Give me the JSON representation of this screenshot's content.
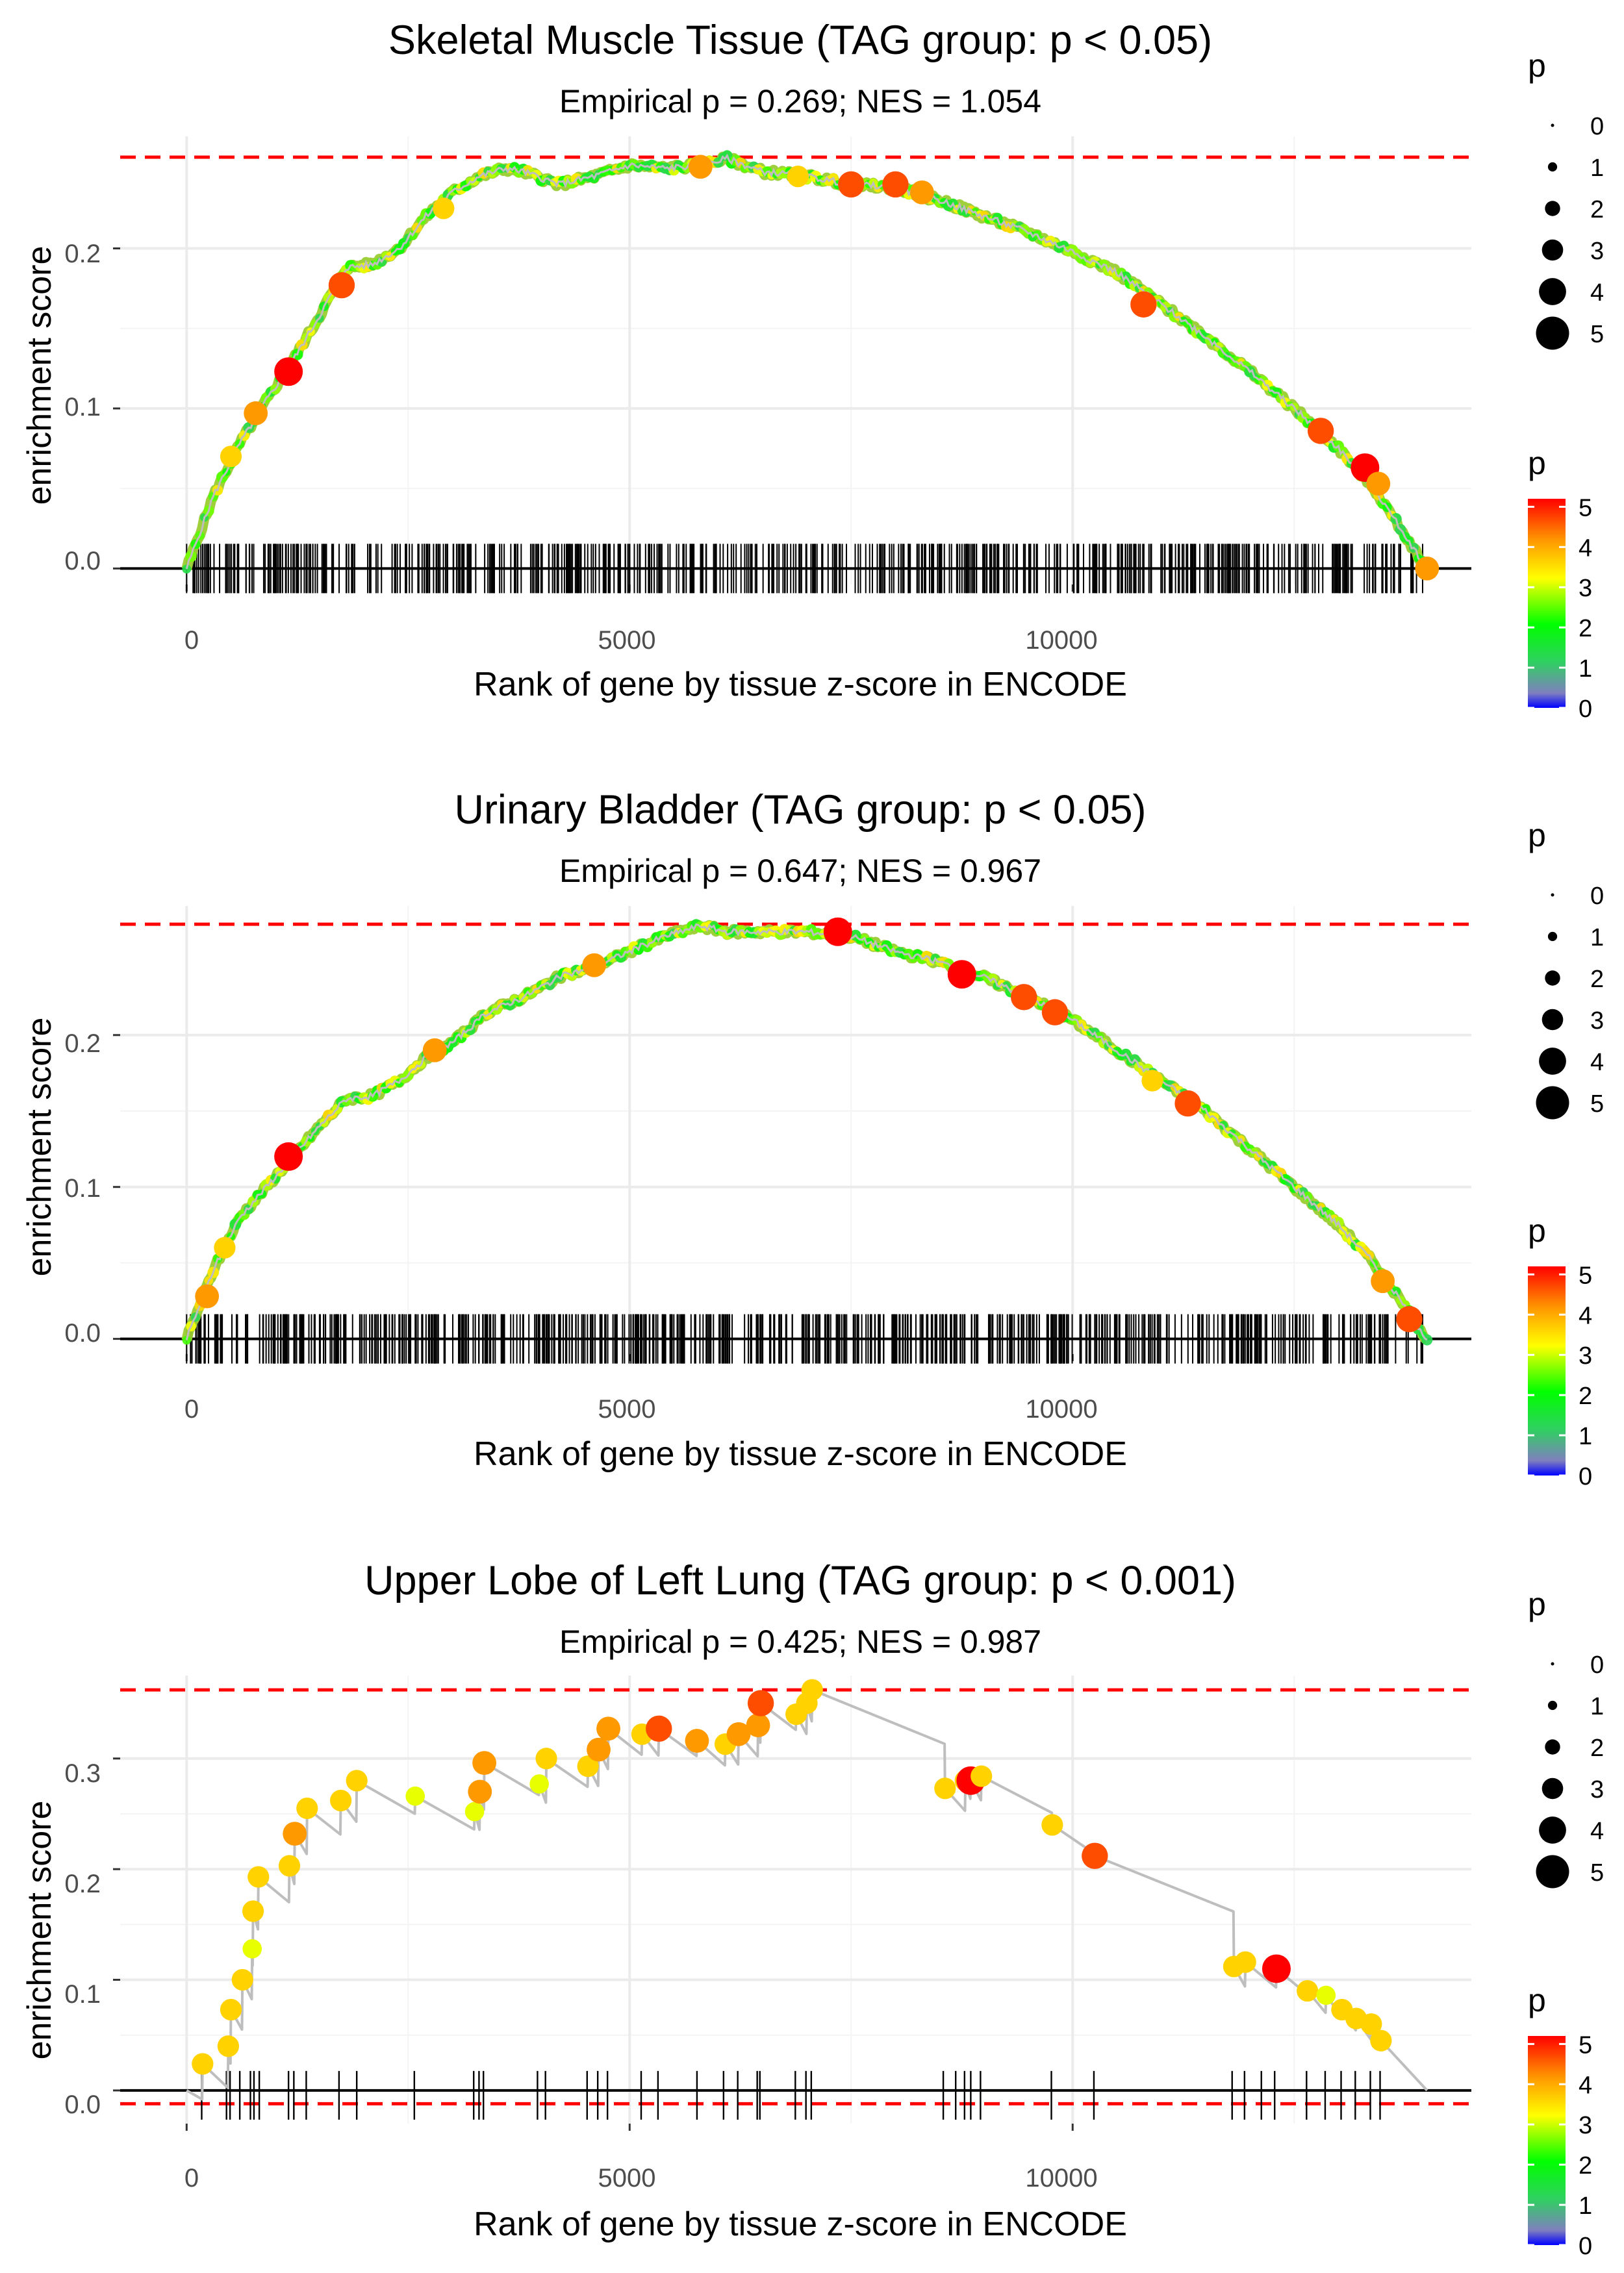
{
  "chart_data": [
    {
      "type": "line",
      "title": "Skeletal Muscle Tissue (TAG group: p < 0.05)",
      "subtitle": "Empirical p = 0.269; NES = 1.054",
      "xlabel": "Rank of gene by tissue z-score in ENCODE",
      "ylabel": "enrichment score",
      "xlim": [
        -750,
        14500
      ],
      "ylim": [
        -0.01,
        0.27
      ],
      "xticks": [
        0,
        5000,
        10000
      ],
      "xtick_labels": [
        "0",
        "5000",
        "10000"
      ],
      "yticks": [
        0.0,
        0.1,
        0.2
      ],
      "ytick_labels": [
        "0.0",
        "0.1",
        "0.2"
      ],
      "max_es": 0.257,
      "min_es": null,
      "curve": {
        "x": [
          0,
          300,
          600,
          900,
          1200,
          1500,
          1800,
          2100,
          2400,
          2700,
          3000,
          3300,
          3600,
          3800,
          4200,
          4600,
          5000,
          5400,
          5800,
          6100,
          6500,
          7000,
          7500,
          8000,
          8500,
          9000,
          9500,
          10000,
          10500,
          11000,
          11500,
          12000,
          12500,
          13000,
          13400,
          13700,
          14000
        ],
        "y": [
          0.0,
          0.045,
          0.078,
          0.105,
          0.13,
          0.158,
          0.188,
          0.19,
          0.2,
          0.22,
          0.235,
          0.245,
          0.25,
          0.248,
          0.24,
          0.245,
          0.252,
          0.25,
          0.252,
          0.256,
          0.248,
          0.245,
          0.24,
          0.238,
          0.23,
          0.22,
          0.21,
          0.198,
          0.185,
          0.165,
          0.145,
          0.123,
          0.1,
          0.075,
          0.05,
          0.025,
          0.0
        ]
      },
      "hits": {
        "n": 600,
        "seed": 11
      },
      "highlight_points": [
        {
          "x": 500,
          "y": 0.07,
          "p": 3.5
        },
        {
          "x": 780,
          "y": 0.097,
          "p": 4.0
        },
        {
          "x": 1150,
          "y": 0.123,
          "p": 5.0
        },
        {
          "x": 1750,
          "y": 0.177,
          "p": 4.5
        },
        {
          "x": 2900,
          "y": 0.225,
          "p": 3.5
        },
        {
          "x": 5800,
          "y": 0.251,
          "p": 4.0
        },
        {
          "x": 6900,
          "y": 0.245,
          "p": 3.5
        },
        {
          "x": 7500,
          "y": 0.24,
          "p": 4.5
        },
        {
          "x": 8000,
          "y": 0.24,
          "p": 4.5
        },
        {
          "x": 8300,
          "y": 0.235,
          "p": 4.0
        },
        {
          "x": 10800,
          "y": 0.165,
          "p": 4.5
        },
        {
          "x": 12800,
          "y": 0.086,
          "p": 4.5
        },
        {
          "x": 13300,
          "y": 0.063,
          "p": 5.0
        },
        {
          "x": 13450,
          "y": 0.053,
          "p": 4.0
        },
        {
          "x": 14000,
          "y": 0.0,
          "p": 4.0
        }
      ]
    },
    {
      "type": "line",
      "title": "Urinary Bladder (TAG group: p < 0.05)",
      "subtitle": "Empirical p = 0.647; NES = 0.967",
      "xlabel": "Rank of gene by tissue z-score in ENCODE",
      "ylabel": "enrichment score",
      "xlim": [
        -750,
        14500
      ],
      "ylim": [
        -0.01,
        0.285
      ],
      "xticks": [
        0,
        5000,
        10000
      ],
      "xtick_labels": [
        "0",
        "5000",
        "10000"
      ],
      "yticks": [
        0.0,
        0.1,
        0.2
      ],
      "ytick_labels": [
        "0.0",
        "0.1",
        "0.2"
      ],
      "max_es": 0.273,
      "min_es": null,
      "curve": {
        "x": [
          0,
          300,
          600,
          900,
          1200,
          1500,
          1800,
          2100,
          2400,
          2700,
          3000,
          3400,
          3800,
          4200,
          4600,
          5000,
          5400,
          5800,
          6100,
          6500,
          7000,
          7500,
          8000,
          8500,
          9000,
          9500,
          10000,
          10500,
          11000,
          11500,
          12000,
          12500,
          13000,
          13400,
          13700,
          14000
        ],
        "y": [
          0.0,
          0.045,
          0.08,
          0.1,
          0.12,
          0.14,
          0.158,
          0.16,
          0.17,
          0.185,
          0.195,
          0.215,
          0.225,
          0.238,
          0.245,
          0.255,
          0.265,
          0.272,
          0.268,
          0.268,
          0.268,
          0.265,
          0.255,
          0.248,
          0.238,
          0.225,
          0.21,
          0.19,
          0.17,
          0.15,
          0.125,
          0.1,
          0.075,
          0.05,
          0.025,
          0.0
        ]
      },
      "hits": {
        "n": 650,
        "seed": 23
      },
      "highlight_points": [
        {
          "x": 230,
          "y": 0.028,
          "p": 4.0
        },
        {
          "x": 430,
          "y": 0.06,
          "p": 3.5
        },
        {
          "x": 1150,
          "y": 0.12,
          "p": 5.0
        },
        {
          "x": 2800,
          "y": 0.19,
          "p": 4.0
        },
        {
          "x": 4600,
          "y": 0.246,
          "p": 4.0
        },
        {
          "x": 7350,
          "y": 0.268,
          "p": 5.0
        },
        {
          "x": 8750,
          "y": 0.24,
          "p": 5.0
        },
        {
          "x": 9450,
          "y": 0.225,
          "p": 4.5
        },
        {
          "x": 9800,
          "y": 0.215,
          "p": 4.5
        },
        {
          "x": 10900,
          "y": 0.17,
          "p": 3.5
        },
        {
          "x": 11300,
          "y": 0.155,
          "p": 4.5
        },
        {
          "x": 13500,
          "y": 0.038,
          "p": 4.0
        },
        {
          "x": 13800,
          "y": 0.013,
          "p": 4.5
        }
      ]
    },
    {
      "type": "line",
      "title": "Upper Lobe of Left Lung (TAG group: p < 0.001)",
      "subtitle": "Empirical p = 0.425; NES = 0.987",
      "xlabel": "Rank of gene by tissue z-score in ENCODE",
      "ylabel": "enrichment score",
      "xlim": [
        -750,
        14500
      ],
      "ylim": [
        -0.03,
        0.375
      ],
      "xticks": [
        0,
        5000,
        10000
      ],
      "xtick_labels": [
        "0",
        "5000",
        "10000"
      ],
      "yticks": [
        0.0,
        0.1,
        0.2,
        0.3
      ],
      "ytick_labels": [
        "0.0",
        "0.1",
        "0.2",
        "0.3"
      ],
      "max_es": 0.362,
      "min_es": -0.012,
      "points": [
        {
          "x": 180,
          "y": 0.024,
          "p": 3.5
        },
        {
          "x": 470,
          "y": 0.04,
          "p": 3.5
        },
        {
          "x": 500,
          "y": 0.073,
          "p": 3.5
        },
        {
          "x": 630,
          "y": 0.1,
          "p": 3.5
        },
        {
          "x": 740,
          "y": 0.128,
          "p": 3.0
        },
        {
          "x": 750,
          "y": 0.162,
          "p": 3.5
        },
        {
          "x": 810,
          "y": 0.193,
          "p": 3.5
        },
        {
          "x": 1160,
          "y": 0.203,
          "p": 3.5
        },
        {
          "x": 1220,
          "y": 0.232,
          "p": 4.0
        },
        {
          "x": 1360,
          "y": 0.255,
          "p": 3.5
        },
        {
          "x": 1740,
          "y": 0.262,
          "p": 3.5
        },
        {
          "x": 1920,
          "y": 0.28,
          "p": 3.5
        },
        {
          "x": 2580,
          "y": 0.266,
          "p": 3.0
        },
        {
          "x": 3250,
          "y": 0.252,
          "p": 3.0
        },
        {
          "x": 3310,
          "y": 0.27,
          "p": 4.0
        },
        {
          "x": 3360,
          "y": 0.296,
          "p": 4.0
        },
        {
          "x": 3980,
          "y": 0.277,
          "p": 3.0
        },
        {
          "x": 4060,
          "y": 0.3,
          "p": 3.5
        },
        {
          "x": 4530,
          "y": 0.293,
          "p": 3.5
        },
        {
          "x": 4650,
          "y": 0.308,
          "p": 4.0
        },
        {
          "x": 4760,
          "y": 0.327,
          "p": 4.0
        },
        {
          "x": 5140,
          "y": 0.322,
          "p": 3.5
        },
        {
          "x": 5330,
          "y": 0.327,
          "p": 4.5
        },
        {
          "x": 5760,
          "y": 0.316,
          "p": 4.0
        },
        {
          "x": 6080,
          "y": 0.313,
          "p": 3.5
        },
        {
          "x": 6230,
          "y": 0.322,
          "p": 4.0
        },
        {
          "x": 6450,
          "y": 0.33,
          "p": 4.0
        },
        {
          "x": 6480,
          "y": 0.35,
          "p": 4.5
        },
        {
          "x": 6880,
          "y": 0.34,
          "p": 3.5
        },
        {
          "x": 7000,
          "y": 0.35,
          "p": 3.5
        },
        {
          "x": 7060,
          "y": 0.362,
          "p": 3.5
        },
        {
          "x": 8560,
          "y": 0.273,
          "p": 3.5
        },
        {
          "x": 8790,
          "y": 0.28,
          "p": 3.5
        },
        {
          "x": 8850,
          "y": 0.28,
          "p": 5.0
        },
        {
          "x": 8970,
          "y": 0.284,
          "p": 3.5
        },
        {
          "x": 9770,
          "y": 0.24,
          "p": 3.5
        },
        {
          "x": 10250,
          "y": 0.212,
          "p": 4.5
        },
        {
          "x": 11820,
          "y": 0.112,
          "p": 3.5
        },
        {
          "x": 11950,
          "y": 0.116,
          "p": 3.5
        },
        {
          "x": 12300,
          "y": 0.11,
          "p": 5.0
        },
        {
          "x": 12650,
          "y": 0.09,
          "p": 3.5
        },
        {
          "x": 12860,
          "y": 0.086,
          "p": 3.0
        },
        {
          "x": 13040,
          "y": 0.073,
          "p": 3.5
        },
        {
          "x": 13200,
          "y": 0.065,
          "p": 3.5
        },
        {
          "x": 13370,
          "y": 0.06,
          "p": 3.5
        },
        {
          "x": 13480,
          "y": 0.045,
          "p": 3.5
        }
      ],
      "curve_end": {
        "x": 14000,
        "y": 0.0
      },
      "hits": {
        "x": [
          170,
          450,
          490,
          600,
          720,
          760,
          820,
          1150,
          1210,
          1350,
          1720,
          1920,
          2570,
          3240,
          3300,
          3350,
          3960,
          4050,
          4520,
          4640,
          4750,
          5130,
          5320,
          5760,
          6060,
          6220,
          6440,
          6470,
          6870,
          6990,
          7050,
          8540,
          8680,
          8780,
          8850,
          8960,
          9760,
          10240,
          11800,
          11940,
          12130,
          12280,
          12640,
          12850,
          13030,
          13190,
          13360,
          13470
        ]
      }
    }
  ],
  "legend": {
    "size_title": "p",
    "size_labels": [
      "0",
      "1",
      "2",
      "3",
      "4",
      "5"
    ],
    "color_title": "p",
    "color_labels": [
      "0",
      "1",
      "2",
      "3",
      "4",
      "5"
    ],
    "colorscale": [
      "#0000ff",
      "#7f7fbf",
      "#2fd060",
      "#00ff00",
      "#ffff00",
      "#ff9900",
      "#ff0000"
    ]
  },
  "colors": {
    "curve": "#bebebe",
    "dashed": "#ff0000",
    "baseline": "#000000",
    "grid": "#ebebeb"
  }
}
